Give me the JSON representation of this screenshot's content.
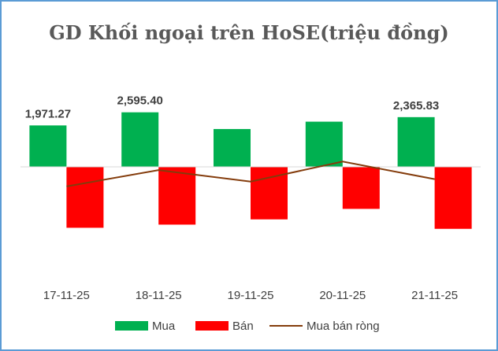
{
  "chart_data": {
    "type": "bar",
    "title": "GD Khối ngoại trên HoSE(triệu đồng)",
    "categories": [
      "17-11-25",
      "18-11-25",
      "19-11-25",
      "20-11-25",
      "21-11-25"
    ],
    "series": [
      {
        "name": "Mua",
        "type": "bar",
        "color": "#00b050",
        "values": [
          1971.27,
          2595.4,
          1800.0,
          2150.0,
          2365.83
        ]
      },
      {
        "name": "Bán",
        "type": "bar",
        "color": "#ff0000",
        "values": [
          -2900.0,
          -2750.0,
          -2500.0,
          -2000.0,
          -2950.0
        ]
      },
      {
        "name": "Mua bán ròng",
        "type": "line",
        "color": "#843c0c",
        "values": [
          -930.0,
          -155.0,
          -700.0,
          250.0,
          -585.0
        ]
      }
    ],
    "data_labels": [
      {
        "series": 0,
        "index": 0,
        "text": "1,971.27"
      },
      {
        "series": 0,
        "index": 1,
        "text": "2,595.40"
      },
      {
        "series": 0,
        "index": 4,
        "text": "2,365.83"
      }
    ],
    "ylim": [
      -3400,
      3600
    ],
    "grid": false,
    "legend_position": "bottom"
  }
}
